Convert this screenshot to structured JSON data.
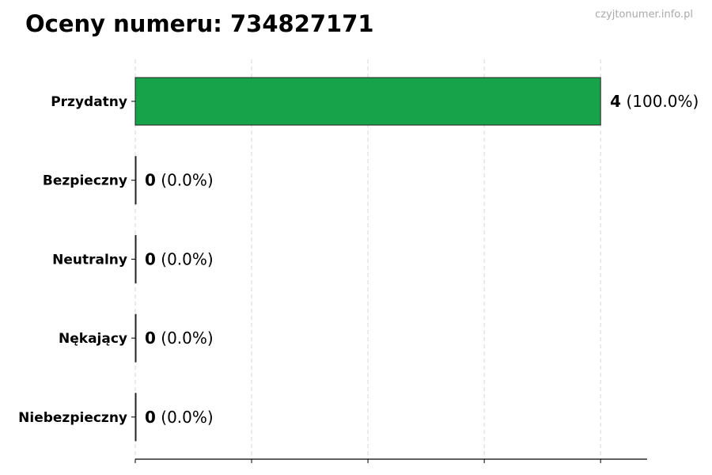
{
  "chart_data": {
    "type": "bar",
    "orientation": "horizontal",
    "title": "Oceny numeru: 734827171",
    "watermark": "czyjtonumer.info.pl",
    "categories": [
      "Przydatny",
      "Bezpieczny",
      "Neutralny",
      "Nękający",
      "Niebezpieczny"
    ],
    "values": [
      4,
      0,
      0,
      0,
      0
    ],
    "value_labels": [
      "4",
      "0",
      "0",
      "0",
      "0"
    ],
    "percent_labels": [
      "(100.0%)",
      "(0.0%)",
      "(0.0%)",
      "(0.0%)",
      "(0.0%)"
    ],
    "xlim": [
      0,
      4.4
    ],
    "xticks": [
      0,
      1,
      2,
      3,
      4
    ],
    "xtick_labels_shown": false,
    "grid": "vertical dashed",
    "bar_color": "#16a34a",
    "xlabel": "",
    "ylabel": ""
  }
}
